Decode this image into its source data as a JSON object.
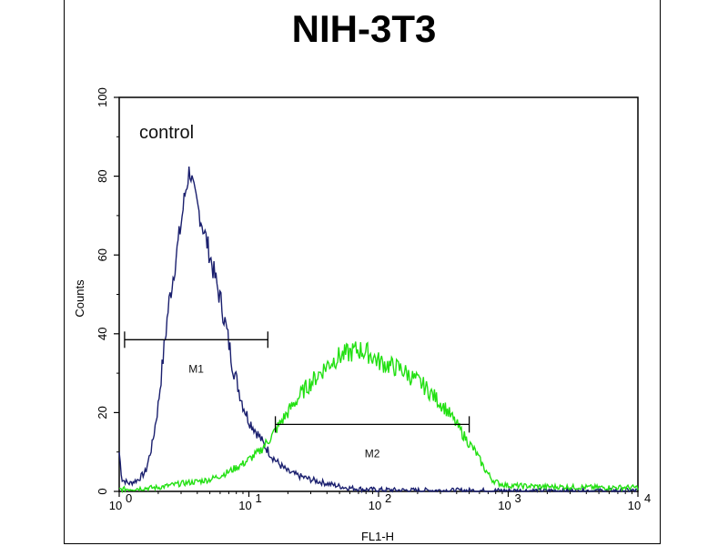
{
  "chart_data": {
    "type": "line",
    "title": "NIH-3T3",
    "xlabel": "FL1-H",
    "ylabel": "Counts",
    "xscale": "log",
    "xlim": [
      1,
      10000
    ],
    "ylim": [
      0,
      100
    ],
    "x_tick_labels": [
      {
        "base": "10",
        "exp": "0"
      },
      {
        "base": "10",
        "exp": "1"
      },
      {
        "base": "10",
        "exp": "2"
      },
      {
        "base": "10",
        "exp": "3"
      },
      {
        "base": "10",
        "exp": "4"
      }
    ],
    "x_ticks": [
      1,
      10,
      100,
      1000,
      10000
    ],
    "y_ticks": [
      "0",
      "20",
      "40",
      "60",
      "80",
      "100"
    ],
    "annotation": "control",
    "grid": false,
    "series": [
      {
        "color": "#1a1f6e",
        "points": [
          [
            1.0,
            10
          ],
          [
            1.05,
            3
          ],
          [
            1.2,
            2
          ],
          [
            1.4,
            3
          ],
          [
            1.6,
            5
          ],
          [
            1.8,
            12
          ],
          [
            2.0,
            22
          ],
          [
            2.2,
            35
          ],
          [
            2.4,
            47
          ],
          [
            2.7,
            58
          ],
          [
            3.0,
            68
          ],
          [
            3.2,
            75
          ],
          [
            3.5,
            82
          ],
          [
            3.8,
            75
          ],
          [
            4.2,
            70
          ],
          [
            4.6,
            65
          ],
          [
            5.0,
            60
          ],
          [
            5.6,
            53
          ],
          [
            6.2,
            47
          ],
          [
            6.8,
            40
          ],
          [
            7.5,
            32
          ],
          [
            8.2,
            27
          ],
          [
            9.0,
            22
          ],
          [
            10,
            18
          ],
          [
            11,
            16
          ],
          [
            12,
            14
          ],
          [
            13,
            12
          ],
          [
            15,
            9
          ],
          [
            17,
            7
          ],
          [
            20,
            5
          ],
          [
            24,
            4
          ],
          [
            30,
            3
          ],
          [
            40,
            2
          ],
          [
            55,
            1
          ],
          [
            80,
            0.5
          ],
          [
            150,
            0.3
          ],
          [
            1000,
            0.2
          ],
          [
            10000,
            0.2
          ]
        ]
      },
      {
        "color": "#22e012",
        "points": [
          [
            1.0,
            0.5
          ],
          [
            2.0,
            1
          ],
          [
            3.0,
            2
          ],
          [
            4.0,
            2.5
          ],
          [
            5.0,
            3
          ],
          [
            6.0,
            4
          ],
          [
            7.0,
            5
          ],
          [
            9.0,
            7
          ],
          [
            12,
            10
          ],
          [
            15,
            14
          ],
          [
            18,
            18
          ],
          [
            22,
            22
          ],
          [
            27,
            26
          ],
          [
            33,
            29
          ],
          [
            40,
            32
          ],
          [
            48,
            34
          ],
          [
            58,
            35
          ],
          [
            70,
            36
          ],
          [
            85,
            35
          ],
          [
            100,
            33
          ],
          [
            120,
            32
          ],
          [
            150,
            31
          ],
          [
            180,
            29
          ],
          [
            220,
            27
          ],
          [
            270,
            24
          ],
          [
            330,
            21
          ],
          [
            400,
            17
          ],
          [
            480,
            13
          ],
          [
            560,
            10
          ],
          [
            650,
            6
          ],
          [
            750,
            3
          ],
          [
            850,
            2
          ],
          [
            1000,
            1.5
          ],
          [
            2000,
            1.2
          ],
          [
            5000,
            1.0
          ],
          [
            10000,
            1.0
          ]
        ]
      }
    ],
    "gates": [
      {
        "label": "M1",
        "x_start": 1.1,
        "x_end": 14,
        "y": 38.5
      },
      {
        "label": "M2",
        "x_start": 16,
        "x_end": 500,
        "y": 17
      }
    ]
  }
}
